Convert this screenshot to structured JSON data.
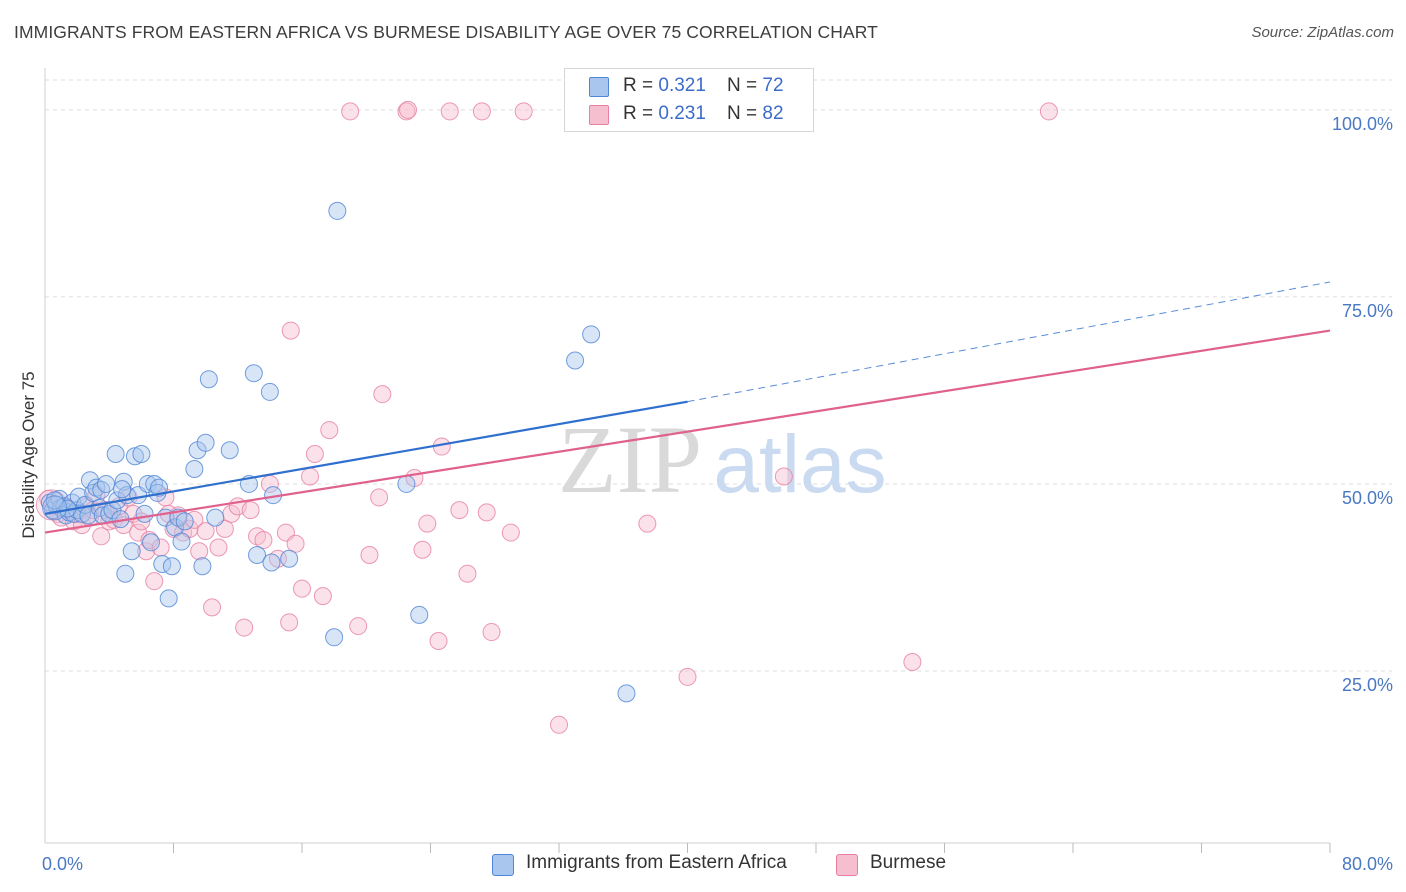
{
  "title": "IMMIGRANTS FROM EASTERN AFRICA VS BURMESE DISABILITY AGE OVER 75 CORRELATION CHART",
  "source": "Source: ZipAtlas.com",
  "watermark": {
    "zip": "ZIP",
    "atlas": "atlas"
  },
  "legend": {
    "items": [
      {
        "r_label": "R = ",
        "r_value": "0.321",
        "n_label": "N = ",
        "n_value": "72"
      },
      {
        "r_label": "R = ",
        "r_value": "0.231",
        "n_label": "N = ",
        "n_value": "82"
      }
    ]
  },
  "colors": {
    "blue_fill": "#a9c6ee",
    "blue_stroke": "#4f86d6",
    "blue_line": "#2f6fce",
    "pink_fill": "#f6bfd0",
    "pink_stroke": "#e77fa2",
    "pink_line": "#e0608e",
    "grid": "#dddddd",
    "tick_text": "#4a78c2"
  },
  "chart_data": {
    "type": "scatter",
    "title": "IMMIGRANTS FROM EASTERN AFRICA VS BURMESE DISABILITY AGE OVER 75 CORRELATION CHART",
    "xlabel": "",
    "ylabel": "Disability Age Over 75",
    "xlim": [
      0,
      80
    ],
    "ylim": [
      2,
      104
    ],
    "x_tick_labels": [
      "0.0%",
      "80.0%"
    ],
    "y_ticks": [
      25,
      50,
      75,
      100
    ],
    "y_tick_labels": [
      "25.0%",
      "50.0%",
      "75.0%",
      "100.0%"
    ],
    "grid": "horizontal dashed",
    "legend_position": "bottom",
    "series": [
      {
        "name": "Immigrants from Eastern Africa",
        "color": "#4f86d6",
        "trend": {
          "x0": 0,
          "y0": 46.0,
          "x1": 40,
          "y1": 61.0,
          "dashed_to_x": 80,
          "dashed_to_y": 77.0
        },
        "points": [
          [
            0.3,
            47.5
          ],
          [
            0.5,
            46.5
          ],
          [
            0.7,
            47.2
          ],
          [
            0.9,
            48.0
          ],
          [
            1.0,
            46.8
          ],
          [
            1.2,
            47.0
          ],
          [
            1.3,
            45.8
          ],
          [
            1.5,
            46.2
          ],
          [
            1.7,
            47.5
          ],
          [
            1.8,
            46.0
          ],
          [
            2.0,
            46.5
          ],
          [
            2.1,
            48.3
          ],
          [
            2.3,
            46.0
          ],
          [
            2.5,
            47.2
          ],
          [
            2.7,
            45.8
          ],
          [
            2.8,
            50.5
          ],
          [
            3.0,
            48.8
          ],
          [
            3.2,
            49.5
          ],
          [
            3.4,
            46.8
          ],
          [
            3.5,
            49.2
          ],
          [
            3.6,
            45.8
          ],
          [
            3.8,
            50.0
          ],
          [
            4.0,
            46.0
          ],
          [
            4.2,
            46.5
          ],
          [
            4.4,
            54.0
          ],
          [
            4.5,
            47.8
          ],
          [
            4.7,
            45.3
          ],
          [
            4.9,
            50.3
          ],
          [
            5.0,
            38.0
          ],
          [
            5.1,
            48.5
          ],
          [
            5.4,
            41.0
          ],
          [
            5.6,
            53.7
          ],
          [
            5.8,
            48.5
          ],
          [
            6.0,
            54.0
          ],
          [
            6.2,
            46.0
          ],
          [
            6.4,
            50.0
          ],
          [
            6.6,
            42.2
          ],
          [
            6.8,
            50.0
          ],
          [
            7.0,
            48.8
          ],
          [
            7.1,
            49.5
          ],
          [
            7.3,
            39.3
          ],
          [
            7.5,
            45.5
          ],
          [
            7.7,
            34.7
          ],
          [
            7.9,
            39.0
          ],
          [
            8.1,
            44.2
          ],
          [
            8.3,
            45.5
          ],
          [
            8.5,
            42.3
          ],
          [
            8.7,
            45.0
          ],
          [
            9.3,
            52.0
          ],
          [
            9.5,
            54.5
          ],
          [
            9.8,
            39.0
          ],
          [
            10.0,
            55.5
          ],
          [
            10.2,
            64.0
          ],
          [
            10.6,
            45.5
          ],
          [
            11.5,
            54.5
          ],
          [
            12.7,
            50.0
          ],
          [
            13.2,
            40.5
          ],
          [
            13.0,
            64.8
          ],
          [
            14.0,
            62.3
          ],
          [
            14.1,
            39.5
          ],
          [
            14.2,
            48.5
          ],
          [
            15.2,
            40.0
          ],
          [
            18.0,
            29.5
          ],
          [
            18.2,
            86.5
          ],
          [
            22.5,
            50.0
          ],
          [
            23.3,
            32.5
          ],
          [
            33.0,
            66.5
          ],
          [
            34.0,
            70.0
          ],
          [
            36.2,
            22.0
          ],
          [
            4.8,
            49.3
          ],
          [
            1.4,
            46.7
          ],
          [
            0.6,
            47.8
          ]
        ]
      },
      {
        "name": "Burmese",
        "color": "#e77fa2",
        "trend": {
          "x0": 0,
          "y0": 43.5,
          "x1": 80,
          "y1": 70.5
        },
        "points": [
          [
            0.2,
            48.0
          ],
          [
            0.5,
            47.0
          ],
          [
            0.8,
            46.0
          ],
          [
            1.0,
            45.5
          ],
          [
            1.3,
            47.0
          ],
          [
            1.5,
            46.5
          ],
          [
            1.8,
            45.0
          ],
          [
            2.0,
            46.0
          ],
          [
            2.3,
            44.5
          ],
          [
            2.6,
            47.0
          ],
          [
            2.8,
            45.5
          ],
          [
            3.0,
            46.5
          ],
          [
            3.2,
            48.5
          ],
          [
            3.5,
            43.0
          ],
          [
            3.8,
            46.5
          ],
          [
            4.0,
            45.0
          ],
          [
            4.3,
            45.2
          ],
          [
            4.6,
            47.0
          ],
          [
            4.9,
            44.5
          ],
          [
            5.2,
            48.2
          ],
          [
            5.5,
            46.0
          ],
          [
            5.8,
            43.5
          ],
          [
            6.0,
            45.0
          ],
          [
            6.3,
            41.0
          ],
          [
            6.5,
            42.5
          ],
          [
            6.8,
            37.0
          ],
          [
            7.2,
            41.5
          ],
          [
            7.5,
            48.2
          ],
          [
            7.7,
            46.0
          ],
          [
            8.0,
            44.0
          ],
          [
            8.3,
            45.8
          ],
          [
            8.6,
            43.5
          ],
          [
            9.0,
            44.0
          ],
          [
            9.3,
            45.2
          ],
          [
            9.6,
            41.0
          ],
          [
            10.0,
            43.7
          ],
          [
            10.4,
            33.5
          ],
          [
            10.8,
            41.5
          ],
          [
            11.2,
            44.0
          ],
          [
            11.6,
            46.0
          ],
          [
            12.0,
            47.0
          ],
          [
            12.4,
            30.8
          ],
          [
            12.8,
            46.5
          ],
          [
            13.2,
            43.0
          ],
          [
            13.6,
            42.5
          ],
          [
            14.0,
            50.0
          ],
          [
            14.5,
            40.0
          ],
          [
            15.0,
            43.5
          ],
          [
            15.2,
            31.5
          ],
          [
            15.3,
            70.5
          ],
          [
            15.6,
            42.0
          ],
          [
            16.0,
            36.0
          ],
          [
            16.5,
            51.0
          ],
          [
            16.8,
            54.0
          ],
          [
            17.3,
            35.0
          ],
          [
            17.7,
            57.2
          ],
          [
            19.0,
            99.8
          ],
          [
            19.5,
            31.0
          ],
          [
            20.2,
            40.5
          ],
          [
            20.8,
            48.2
          ],
          [
            21.0,
            62.0
          ],
          [
            22.5,
            99.8
          ],
          [
            22.6,
            100.0
          ],
          [
            23.0,
            50.8
          ],
          [
            23.5,
            41.2
          ],
          [
            23.8,
            44.7
          ],
          [
            24.5,
            29.0
          ],
          [
            24.7,
            55.0
          ],
          [
            25.2,
            99.8
          ],
          [
            25.8,
            46.5
          ],
          [
            26.3,
            38.0
          ],
          [
            27.2,
            99.8
          ],
          [
            27.5,
            46.2
          ],
          [
            27.8,
            30.2
          ],
          [
            29.0,
            43.5
          ],
          [
            29.8,
            99.8
          ],
          [
            37.5,
            44.7
          ],
          [
            40.0,
            24.2
          ],
          [
            46.0,
            51.0
          ],
          [
            54.0,
            26.2
          ],
          [
            62.5,
            99.8
          ],
          [
            32.0,
            17.8
          ]
        ]
      }
    ]
  }
}
